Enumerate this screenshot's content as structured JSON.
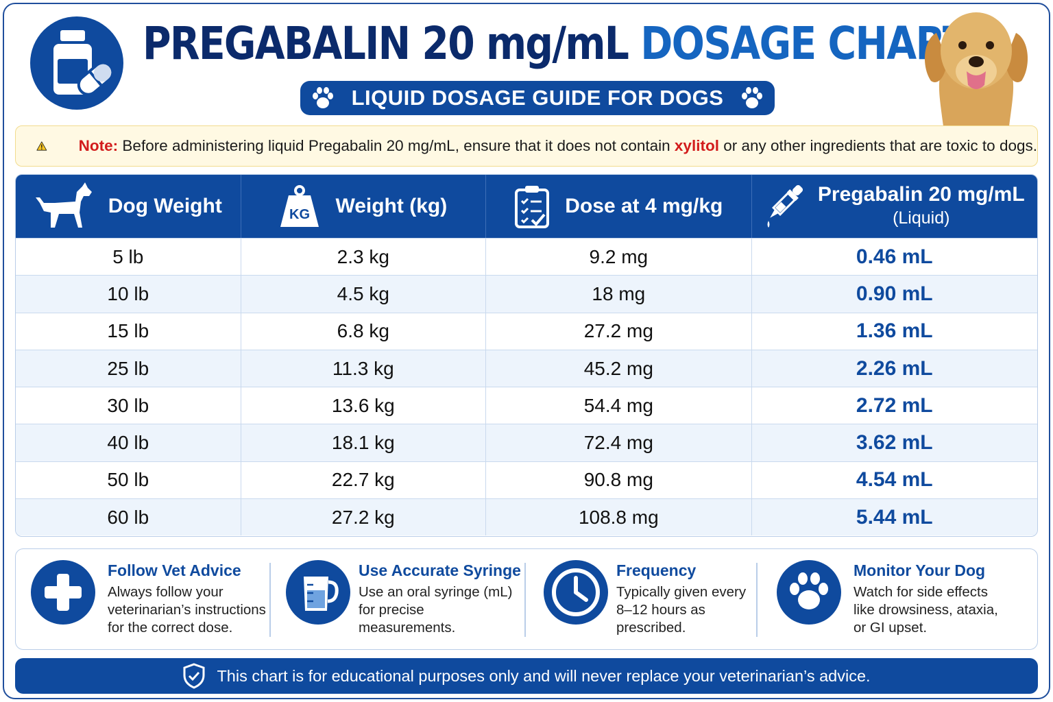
{
  "header": {
    "title_part1": "PREGABALIN 20 mg/mL",
    "title_part2": "DOSAGE CHART",
    "subtitle": "LIQUID DOSAGE GUIDE FOR DOGS",
    "logo_icon": "medicine-bottle-pill-icon",
    "paw_icon": "paw-icon",
    "image": "golden-retriever-photo"
  },
  "note": {
    "icon": "warning-icon",
    "label": "Note:",
    "text_before": "Before administering liquid Pregabalin 20 mg/mL, ensure that it does not contain",
    "highlight": "xylitol",
    "text_after": "or any other ingredients that are toxic to dogs."
  },
  "table": {
    "headers": [
      {
        "label": "Dog Weight",
        "icon": "dog-icon"
      },
      {
        "label": "Weight (kg)",
        "icon": "kg-weight-icon"
      },
      {
        "label": "Dose at 4 mg/kg",
        "icon": "clipboard-checklist-icon"
      },
      {
        "label": "Pregabalin 20 mg/mL",
        "sub": "(Liquid)",
        "icon": "dropper-icon"
      }
    ],
    "rows": [
      [
        "5 lb",
        "2.3 kg",
        "9.2 mg",
        "0.46 mL"
      ],
      [
        "10 lb",
        "4.5 kg",
        "18 mg",
        "0.90 mL"
      ],
      [
        "15 lb",
        "6.8 kg",
        "27.2 mg",
        "1.36 mL"
      ],
      [
        "25 lb",
        "11.3 kg",
        "45.2 mg",
        "2.26 mL"
      ],
      [
        "30 lb",
        "13.6 kg",
        "54.4 mg",
        "2.72 mL"
      ],
      [
        "40 lb",
        "18.1 kg",
        "72.4 mg",
        "3.62 mL"
      ],
      [
        "50 lb",
        "22.7 kg",
        "90.8 mg",
        "4.54 mL"
      ],
      [
        "60 lb",
        "27.2 kg",
        "108.8 mg",
        "5.44 mL"
      ]
    ]
  },
  "tips": [
    {
      "title": "Follow Vet Advice",
      "text": "Always follow your veterinarian’s instructions for the correct dose.",
      "icon": "plus-cross-icon"
    },
    {
      "title": "Use Accurate Syringe",
      "text": "Use an oral syringe (mL) for precise measurements.",
      "icon": "measuring-cup-icon"
    },
    {
      "title": "Frequency",
      "text": "Typically given every 8–12 hours as prescribed.",
      "icon": "clock-icon"
    },
    {
      "title": "Monitor Your Dog",
      "text": "Watch for side effects like drowsiness, ataxia, or GI upset.",
      "icon": "paw-icon"
    }
  ],
  "footer": {
    "icon": "shield-check-icon",
    "text": "This chart is for educational purposes only and will never replace your veterinarian’s advice."
  },
  "colors": {
    "primary": "#0f4a9e",
    "title_dark": "#0b2a6b",
    "title_accent": "#1565c0",
    "warning": "#d21c1c",
    "note_bg": "#fff9e3"
  }
}
